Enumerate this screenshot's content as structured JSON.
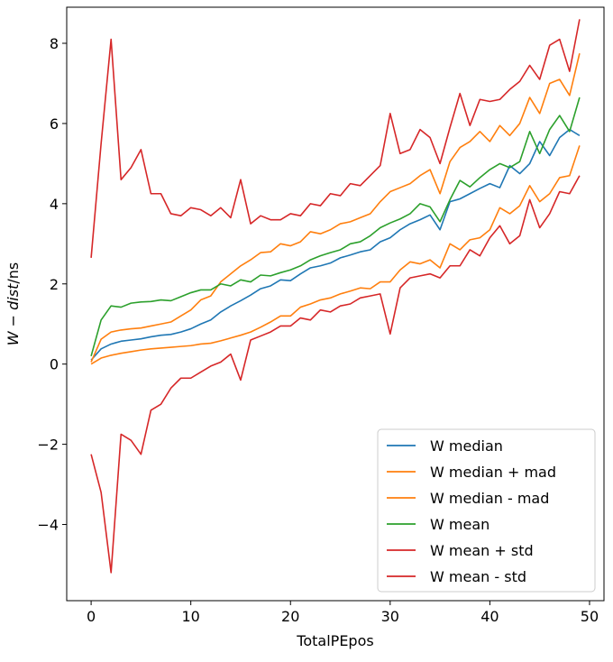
{
  "chart_data": {
    "type": "line",
    "title": "",
    "xlabel": "TotalPEpos",
    "ylabel_parts": [
      "W",
      " − ",
      "dist",
      "/ns"
    ],
    "xlim": [
      -2.45,
      51.45
    ],
    "ylim": [
      -5.9,
      8.9
    ],
    "xticks": [
      0,
      10,
      20,
      30,
      40,
      50
    ],
    "yticks": [
      -4,
      -2,
      0,
      2,
      4,
      6,
      8
    ],
    "xtick_labels": [
      "0",
      "10",
      "20",
      "30",
      "40",
      "50"
    ],
    "ytick_labels": [
      "−4",
      "−2",
      "0",
      "2",
      "4",
      "6",
      "8"
    ],
    "grid": false,
    "legend_position": "lower-right",
    "x": [
      0,
      1,
      2,
      3,
      4,
      5,
      6,
      7,
      8,
      9,
      10,
      11,
      12,
      13,
      14,
      15,
      16,
      17,
      18,
      19,
      20,
      21,
      22,
      23,
      24,
      25,
      26,
      27,
      28,
      29,
      30,
      31,
      32,
      33,
      34,
      35,
      36,
      37,
      38,
      39,
      40,
      41,
      42,
      43,
      44,
      45,
      46,
      47,
      48,
      49
    ],
    "series": [
      {
        "name": "W median",
        "color": "#1f77b4",
        "values": [
          0.1,
          0.38,
          0.5,
          0.57,
          0.6,
          0.63,
          0.68,
          0.72,
          0.74,
          0.8,
          0.88,
          1.0,
          1.1,
          1.3,
          1.45,
          1.58,
          1.72,
          1.88,
          1.95,
          2.1,
          2.08,
          2.25,
          2.4,
          2.45,
          2.52,
          2.65,
          2.72,
          2.8,
          2.85,
          3.05,
          3.15,
          3.35,
          3.5,
          3.6,
          3.72,
          3.35,
          4.05,
          4.12,
          4.25,
          4.38,
          4.5,
          4.4,
          4.95,
          4.75,
          5.0,
          5.55,
          5.2,
          5.65,
          5.85,
          5.7
        ]
      },
      {
        "name": "W median + mad",
        "color": "#ff7f0e",
        "values": [
          0.05,
          0.62,
          0.8,
          0.85,
          0.88,
          0.9,
          0.95,
          1.0,
          1.05,
          1.2,
          1.35,
          1.6,
          1.7,
          2.05,
          2.25,
          2.45,
          2.6,
          2.78,
          2.8,
          3.0,
          2.95,
          3.05,
          3.3,
          3.25,
          3.35,
          3.5,
          3.55,
          3.65,
          3.75,
          4.05,
          4.3,
          4.4,
          4.5,
          4.7,
          4.85,
          4.25,
          5.05,
          5.4,
          5.55,
          5.8,
          5.55,
          5.95,
          5.7,
          6.0,
          6.65,
          6.25,
          7.0,
          7.1,
          6.7,
          7.75
        ]
      },
      {
        "name": "W median - mad",
        "color": "#ff7f0e",
        "values": [
          0.0,
          0.15,
          0.22,
          0.27,
          0.31,
          0.35,
          0.38,
          0.4,
          0.42,
          0.44,
          0.46,
          0.5,
          0.52,
          0.58,
          0.65,
          0.72,
          0.8,
          0.92,
          1.05,
          1.2,
          1.2,
          1.42,
          1.5,
          1.6,
          1.65,
          1.75,
          1.82,
          1.9,
          1.88,
          2.05,
          2.05,
          2.35,
          2.55,
          2.5,
          2.6,
          2.4,
          3.0,
          2.85,
          3.1,
          3.15,
          3.35,
          3.9,
          3.75,
          3.95,
          4.45,
          4.05,
          4.25,
          4.65,
          4.7,
          5.45
        ]
      },
      {
        "name": "W mean",
        "color": "#2ca02c",
        "values": [
          0.2,
          1.1,
          1.45,
          1.42,
          1.52,
          1.55,
          1.56,
          1.6,
          1.58,
          1.68,
          1.78,
          1.85,
          1.85,
          2.0,
          1.95,
          2.1,
          2.05,
          2.22,
          2.2,
          2.28,
          2.35,
          2.45,
          2.6,
          2.7,
          2.78,
          2.85,
          3.0,
          3.05,
          3.2,
          3.4,
          3.52,
          3.62,
          3.75,
          4.0,
          3.92,
          3.55,
          4.1,
          4.58,
          4.42,
          4.65,
          4.85,
          5.0,
          4.9,
          5.05,
          5.8,
          5.25,
          5.85,
          6.2,
          5.8,
          6.65
        ]
      },
      {
        "name": "W mean + std",
        "color": "#d62728",
        "values": [
          2.65,
          5.5,
          8.1,
          4.6,
          4.9,
          5.35,
          4.25,
          4.25,
          3.75,
          3.7,
          3.9,
          3.85,
          3.7,
          3.9,
          3.65,
          4.6,
          3.5,
          3.7,
          3.6,
          3.6,
          3.75,
          3.7,
          4.0,
          3.95,
          4.25,
          4.2,
          4.5,
          4.45,
          4.7,
          4.95,
          6.25,
          5.25,
          5.35,
          5.85,
          5.65,
          5.0,
          5.9,
          6.75,
          5.95,
          6.6,
          6.55,
          6.6,
          6.85,
          7.05,
          7.45,
          7.1,
          7.95,
          8.1,
          7.3,
          8.6
        ]
      },
      {
        "name": "W mean - std",
        "color": "#d62728",
        "values": [
          -2.25,
          -3.2,
          -5.2,
          -1.75,
          -1.9,
          -2.25,
          -1.15,
          -1.0,
          -0.6,
          -0.35,
          -0.35,
          -0.2,
          -0.05,
          0.05,
          0.25,
          -0.4,
          0.6,
          0.7,
          0.8,
          0.95,
          0.95,
          1.15,
          1.1,
          1.35,
          1.3,
          1.45,
          1.5,
          1.65,
          1.7,
          1.75,
          0.75,
          1.9,
          2.15,
          2.2,
          2.25,
          2.15,
          2.45,
          2.45,
          2.85,
          2.7,
          3.15,
          3.45,
          3.0,
          3.2,
          4.1,
          3.4,
          3.75,
          4.3,
          4.25,
          4.7
        ]
      }
    ]
  }
}
